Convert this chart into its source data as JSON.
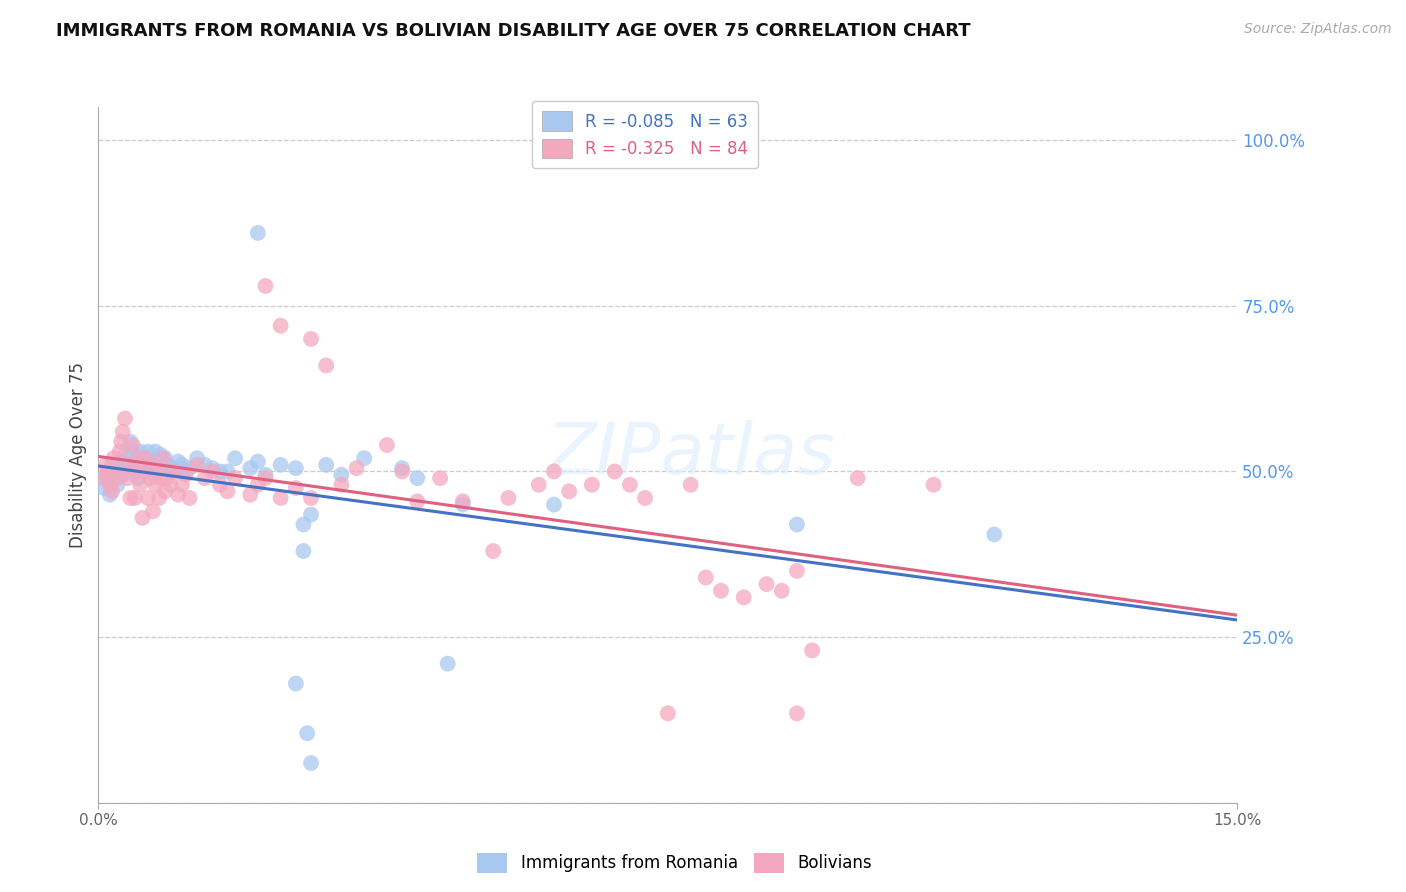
{
  "title": "IMMIGRANTS FROM ROMANIA VS BOLIVIAN DISABILITY AGE OVER 75 CORRELATION CHART",
  "source": "Source: ZipAtlas.com",
  "ylabel_label": "Disability Age Over 75",
  "right_ytick_labels": [
    "100.0%",
    "75.0%",
    "50.0%",
    "25.0%",
    ""
  ],
  "right_ytick_vals": [
    1.0,
    0.75,
    0.5,
    0.25,
    0.0
  ],
  "xmin": 0.0,
  "xmax": 0.15,
  "ymin": 0.0,
  "ymax": 1.05,
  "watermark": "ZIPatlas",
  "romania_color": "#a8c8f0",
  "bolivia_color": "#f4a8c0",
  "romania_line_color": "#4472c4",
  "bolivia_line_color": "#e06080",
  "grid_color": "#cccccc",
  "romania_scatter": [
    [
      0.0008,
      0.475
    ],
    [
      0.001,
      0.495
    ],
    [
      0.0012,
      0.485
    ],
    [
      0.0015,
      0.465
    ],
    [
      0.0018,
      0.51
    ],
    [
      0.002,
      0.5
    ],
    [
      0.0022,
      0.49
    ],
    [
      0.0025,
      0.48
    ],
    [
      0.0028,
      0.505
    ],
    [
      0.003,
      0.515
    ],
    [
      0.0032,
      0.495
    ],
    [
      0.0035,
      0.525
    ],
    [
      0.0038,
      0.51
    ],
    [
      0.004,
      0.5
    ],
    [
      0.0042,
      0.545
    ],
    [
      0.0045,
      0.53
    ],
    [
      0.0048,
      0.515
    ],
    [
      0.005,
      0.5
    ],
    [
      0.0052,
      0.49
    ],
    [
      0.0055,
      0.53
    ],
    [
      0.0058,
      0.52
    ],
    [
      0.006,
      0.51
    ],
    [
      0.0062,
      0.5
    ],
    [
      0.0065,
      0.53
    ],
    [
      0.0068,
      0.51
    ],
    [
      0.007,
      0.505
    ],
    [
      0.0072,
      0.495
    ],
    [
      0.0075,
      0.53
    ],
    [
      0.0078,
      0.515
    ],
    [
      0.008,
      0.51
    ],
    [
      0.0082,
      0.525
    ],
    [
      0.0085,
      0.505
    ],
    [
      0.0088,
      0.52
    ],
    [
      0.009,
      0.51
    ],
    [
      0.0095,
      0.5
    ],
    [
      0.01,
      0.505
    ],
    [
      0.0105,
      0.515
    ],
    [
      0.011,
      0.51
    ],
    [
      0.0115,
      0.5
    ],
    [
      0.012,
      0.505
    ],
    [
      0.013,
      0.52
    ],
    [
      0.014,
      0.51
    ],
    [
      0.015,
      0.505
    ],
    [
      0.016,
      0.5
    ],
    [
      0.017,
      0.5
    ],
    [
      0.018,
      0.52
    ],
    [
      0.02,
      0.505
    ],
    [
      0.021,
      0.515
    ],
    [
      0.022,
      0.495
    ],
    [
      0.024,
      0.51
    ],
    [
      0.026,
      0.505
    ],
    [
      0.027,
      0.42
    ],
    [
      0.027,
      0.38
    ],
    [
      0.028,
      0.435
    ],
    [
      0.03,
      0.51
    ],
    [
      0.032,
      0.495
    ],
    [
      0.035,
      0.52
    ],
    [
      0.04,
      0.505
    ],
    [
      0.042,
      0.49
    ],
    [
      0.046,
      0.21
    ],
    [
      0.048,
      0.45
    ],
    [
      0.06,
      0.45
    ],
    [
      0.021,
      0.86
    ],
    [
      0.026,
      0.18
    ],
    [
      0.0275,
      0.105
    ],
    [
      0.028,
      0.06
    ],
    [
      0.092,
      0.42
    ],
    [
      0.118,
      0.405
    ]
  ],
  "bolivia_scatter": [
    [
      0.0008,
      0.49
    ],
    [
      0.001,
      0.51
    ],
    [
      0.0012,
      0.5
    ],
    [
      0.0015,
      0.48
    ],
    [
      0.0018,
      0.47
    ],
    [
      0.002,
      0.52
    ],
    [
      0.0022,
      0.5
    ],
    [
      0.0025,
      0.49
    ],
    [
      0.0028,
      0.53
    ],
    [
      0.003,
      0.545
    ],
    [
      0.0032,
      0.56
    ],
    [
      0.0035,
      0.58
    ],
    [
      0.0038,
      0.49
    ],
    [
      0.004,
      0.51
    ],
    [
      0.0042,
      0.46
    ],
    [
      0.0045,
      0.54
    ],
    [
      0.0048,
      0.46
    ],
    [
      0.005,
      0.5
    ],
    [
      0.0052,
      0.52
    ],
    [
      0.0055,
      0.48
    ],
    [
      0.0058,
      0.43
    ],
    [
      0.006,
      0.5
    ],
    [
      0.0062,
      0.52
    ],
    [
      0.0065,
      0.46
    ],
    [
      0.0068,
      0.49
    ],
    [
      0.007,
      0.51
    ],
    [
      0.0072,
      0.44
    ],
    [
      0.0075,
      0.48
    ],
    [
      0.0078,
      0.5
    ],
    [
      0.008,
      0.46
    ],
    [
      0.0082,
      0.49
    ],
    [
      0.0085,
      0.52
    ],
    [
      0.0088,
      0.47
    ],
    [
      0.009,
      0.49
    ],
    [
      0.0095,
      0.48
    ],
    [
      0.01,
      0.5
    ],
    [
      0.0105,
      0.465
    ],
    [
      0.011,
      0.48
    ],
    [
      0.0115,
      0.495
    ],
    [
      0.012,
      0.46
    ],
    [
      0.013,
      0.51
    ],
    [
      0.014,
      0.49
    ],
    [
      0.015,
      0.5
    ],
    [
      0.016,
      0.48
    ],
    [
      0.017,
      0.47
    ],
    [
      0.018,
      0.49
    ],
    [
      0.02,
      0.465
    ],
    [
      0.021,
      0.48
    ],
    [
      0.022,
      0.49
    ],
    [
      0.024,
      0.46
    ],
    [
      0.026,
      0.475
    ],
    [
      0.028,
      0.46
    ],
    [
      0.022,
      0.78
    ],
    [
      0.024,
      0.72
    ],
    [
      0.028,
      0.7
    ],
    [
      0.03,
      0.66
    ],
    [
      0.032,
      0.48
    ],
    [
      0.034,
      0.505
    ],
    [
      0.038,
      0.54
    ],
    [
      0.04,
      0.5
    ],
    [
      0.042,
      0.455
    ],
    [
      0.045,
      0.49
    ],
    [
      0.048,
      0.455
    ],
    [
      0.052,
      0.38
    ],
    [
      0.054,
      0.46
    ],
    [
      0.058,
      0.48
    ],
    [
      0.06,
      0.5
    ],
    [
      0.062,
      0.47
    ],
    [
      0.065,
      0.48
    ],
    [
      0.068,
      0.5
    ],
    [
      0.07,
      0.48
    ],
    [
      0.072,
      0.46
    ],
    [
      0.078,
      0.48
    ],
    [
      0.08,
      0.34
    ],
    [
      0.082,
      0.32
    ],
    [
      0.085,
      0.31
    ],
    [
      0.088,
      0.33
    ],
    [
      0.09,
      0.32
    ],
    [
      0.092,
      0.35
    ],
    [
      0.094,
      0.23
    ],
    [
      0.075,
      0.135
    ],
    [
      0.1,
      0.49
    ],
    [
      0.092,
      0.135
    ],
    [
      0.11,
      0.48
    ]
  ]
}
